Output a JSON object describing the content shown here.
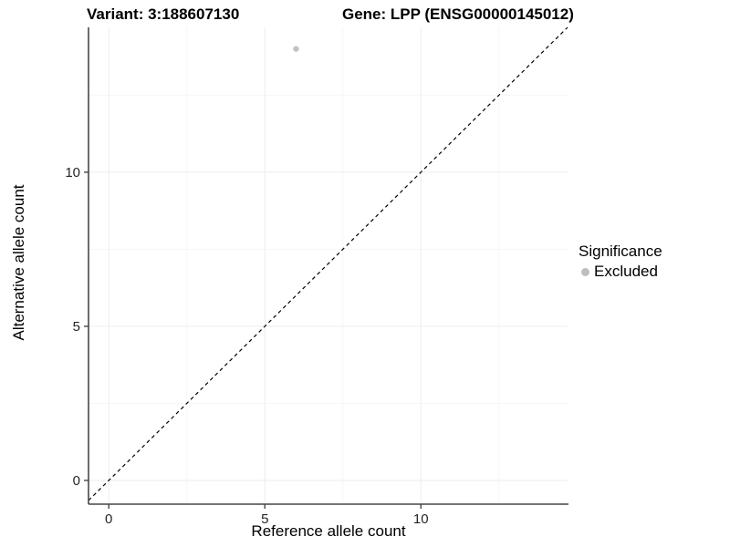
{
  "header": {
    "variant_title": "Variant: 3:188607130",
    "gene_title": "Gene: LPP (ENSG00000145012)"
  },
  "chart_data": {
    "type": "scatter",
    "title_left": "Variant: 3:188607130",
    "title_right": "Gene: LPP (ENSG00000145012)",
    "xlabel": "Reference allele count",
    "ylabel": "Alternative allele count",
    "xlim": [
      -0.65,
      14.7
    ],
    "ylim": [
      -0.77,
      14.7
    ],
    "x_ticks": [
      0,
      5,
      10
    ],
    "y_ticks": [
      0,
      5,
      10
    ],
    "x_minor_ticks": [
      2.5,
      7.5,
      12.5
    ],
    "y_minor_ticks": [
      2.5,
      7.5,
      12.5
    ],
    "grid": true,
    "points": [
      {
        "x": 6,
        "y": 14,
        "significance": "Excluded"
      }
    ],
    "identity_line": {
      "style": "dashed",
      "slope": 1,
      "intercept": 0,
      "color": "#000000"
    },
    "legend": {
      "title": "Significance",
      "position": "right",
      "items": [
        {
          "label": "Excluded",
          "color": "#bebebe",
          "marker": "circle"
        }
      ]
    },
    "colors": {
      "background": "#ffffff",
      "point": "#c3c3c3",
      "grid_major": "#ededed",
      "grid_minor": "#f6f6f6",
      "axis_line": "#474747",
      "tick_label": "#262626"
    }
  }
}
